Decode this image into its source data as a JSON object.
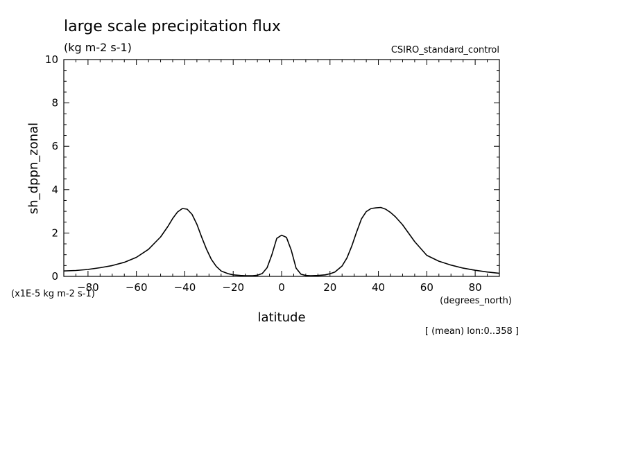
{
  "chart_data": {
    "type": "line",
    "title": "large scale precipitation flux",
    "subtitle": "(kg m-2 s-1)",
    "dataset_label": "CSIRO_standard_control",
    "xlabel": "latitude",
    "ylabel": "sh_dppn_zonal",
    "x_units": "(degrees_north)",
    "y_scale_note": "(x1E-5 kg m-2 s-1)",
    "footnote": "[ (mean) lon:0..358 ]",
    "xlim": [
      -90,
      90
    ],
    "ylim": [
      0,
      10
    ],
    "x_ticks": [
      -80,
      -60,
      -40,
      -20,
      0,
      20,
      40,
      60,
      80
    ],
    "y_ticks": [
      0,
      2,
      4,
      6,
      8,
      10
    ],
    "grid": false,
    "series": [
      {
        "x": [
          -90,
          -85,
          -80,
          -75,
          -70,
          -65,
          -60,
          -55,
          -50,
          -47,
          -45,
          -43,
          -41,
          -39,
          -37,
          -35,
          -33,
          -31,
          -29,
          -27,
          -25,
          -22,
          -20,
          -17,
          -15,
          -12,
          -10,
          -8,
          -6,
          -4,
          -2,
          0,
          2,
          4,
          6,
          8,
          10,
          12,
          15,
          18,
          20,
          22,
          25,
          27,
          29,
          31,
          33,
          35,
          37,
          39,
          41,
          43,
          45,
          47,
          50,
          55,
          60,
          65,
          70,
          75,
          80,
          85,
          90
        ],
        "y": [
          0.25,
          0.27,
          0.32,
          0.4,
          0.5,
          0.65,
          0.88,
          1.25,
          1.82,
          2.3,
          2.67,
          2.97,
          3.13,
          3.1,
          2.86,
          2.4,
          1.8,
          1.25,
          0.78,
          0.46,
          0.25,
          0.12,
          0.07,
          0.04,
          0.03,
          0.03,
          0.05,
          0.13,
          0.4,
          1.0,
          1.75,
          1.9,
          1.8,
          1.2,
          0.38,
          0.1,
          0.04,
          0.03,
          0.04,
          0.07,
          0.12,
          0.2,
          0.48,
          0.85,
          1.4,
          2.05,
          2.65,
          2.99,
          3.13,
          3.16,
          3.18,
          3.1,
          2.95,
          2.75,
          2.38,
          1.6,
          0.97,
          0.7,
          0.52,
          0.38,
          0.28,
          0.2,
          0.14
        ]
      }
    ]
  }
}
